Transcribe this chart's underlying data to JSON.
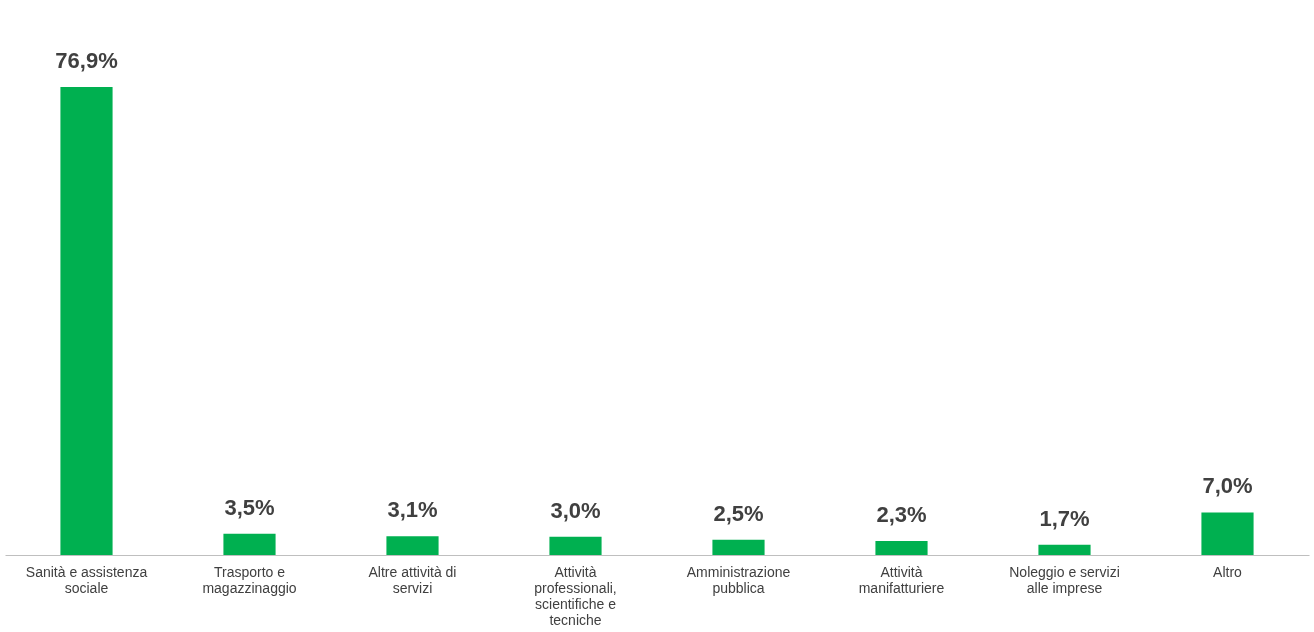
{
  "chart_data": {
    "type": "bar",
    "categories": [
      "Sanità e assistenza sociale",
      "Trasporto e magazzinaggio",
      "Altre attività di servizi",
      "Attività professionali, scientifiche e tecniche",
      "Amministrazione pubblica",
      "Attività manifatturiere",
      "Noleggio e servizi alle imprese",
      "Altro"
    ],
    "values": [
      76.9,
      3.5,
      3.1,
      3.0,
      2.5,
      2.3,
      1.7,
      7.0
    ],
    "value_labels": [
      "76,9%",
      "3,5%",
      "3,1%",
      "3,0%",
      "2,5%",
      "2,3%",
      "1,7%",
      "7,0%"
    ],
    "color": "#00b050",
    "grid": false
  }
}
